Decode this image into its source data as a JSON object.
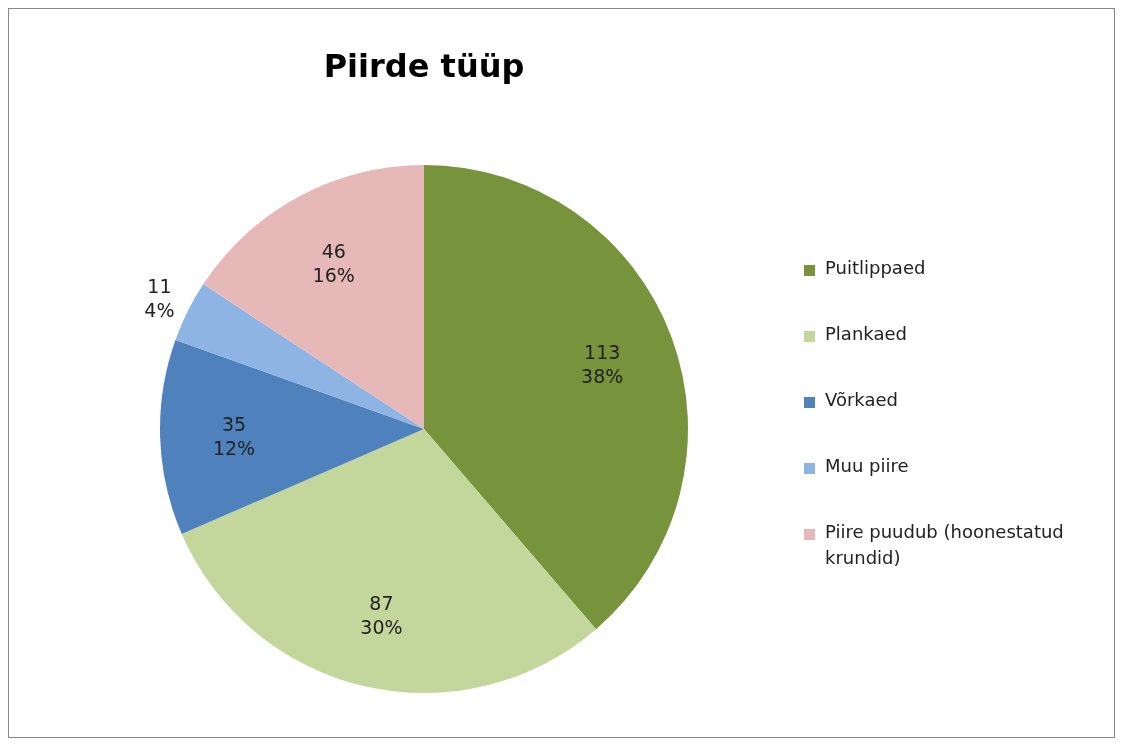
{
  "chart_data": {
    "type": "pie",
    "title": "Piirde tüüp",
    "categories": [
      "Puitlippaed",
      "Plankaed",
      "Võrkaed",
      "Muu piire",
      "Piire puudub (hoonestatud krundid)"
    ],
    "values": [
      113,
      87,
      35,
      11,
      46
    ],
    "colors": [
      "#77933c",
      "#c3d69b",
      "#4f81bd",
      "#8eb4e3",
      "#e6b9b8"
    ],
    "value_labels": [
      "113\n38%",
      "87\n30%",
      "35\n12%",
      "11\n4%",
      "46\n16%"
    ],
    "legend": "right"
  }
}
